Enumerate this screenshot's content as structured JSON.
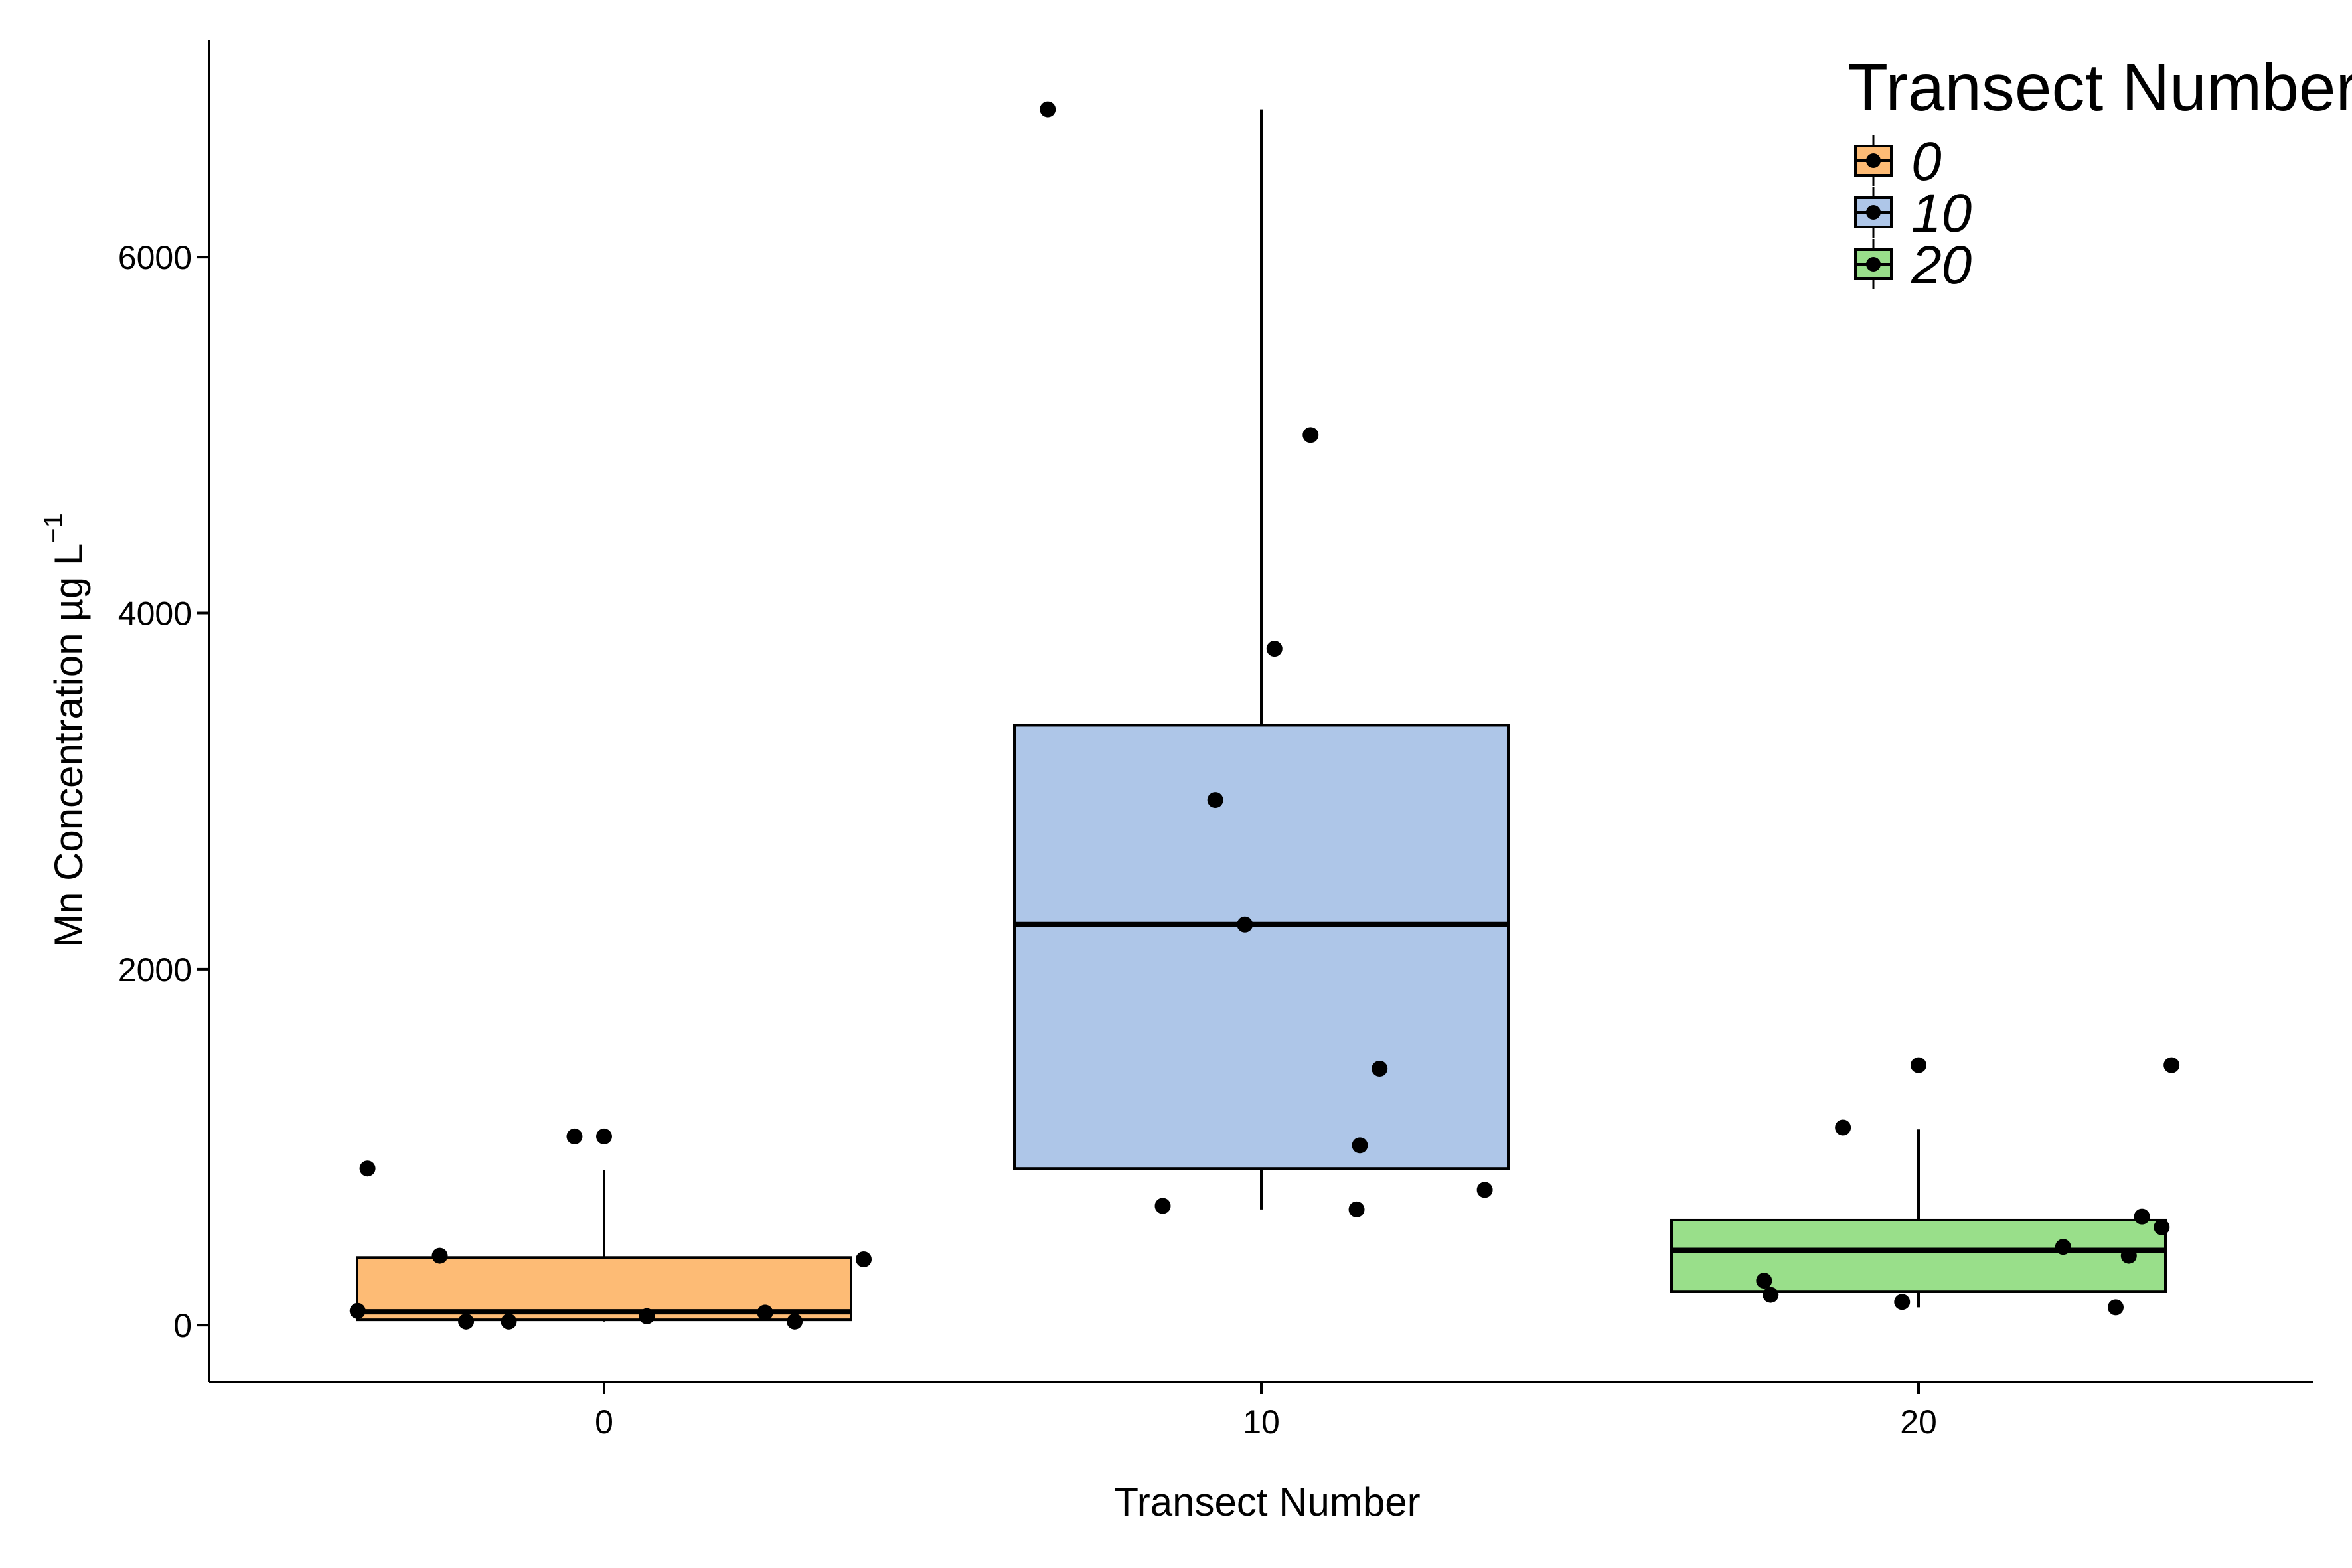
{
  "chart_data": {
    "type": "box",
    "xlabel": "Transect Number",
    "ylabel": "Mn Concentration µg L",
    "ylabel_superscript": "−1",
    "ylim": [
      -320,
      7220
    ],
    "yticks": [
      0,
      2000,
      4000,
      6000
    ],
    "grid": false,
    "legend": {
      "title": "Transect Number",
      "placement": "top-right",
      "entries": [
        "0",
        "10",
        "20"
      ]
    },
    "categories": [
      "0",
      "10",
      "20"
    ],
    "series": [
      {
        "name": "0",
        "color": "#fdbb75",
        "box": {
          "min": 20,
          "q1": 30,
          "median": 75,
          "q3": 380,
          "max": 870
        },
        "points": [
          {
            "x_offset": -0.375,
            "y": 80
          },
          {
            "x_offset": -0.36,
            "y": 880
          },
          {
            "x_offset": -0.25,
            "y": 390
          },
          {
            "x_offset": -0.21,
            "y": 20
          },
          {
            "x_offset": -0.145,
            "y": 20
          },
          {
            "x_offset": -0.045,
            "y": 1060
          },
          {
            "x_offset": 0.0,
            "y": 1060
          },
          {
            "x_offset": 0.065,
            "y": 50
          },
          {
            "x_offset": 0.245,
            "y": 70
          },
          {
            "x_offset": 0.29,
            "y": 20
          },
          {
            "x_offset": 0.395,
            "y": 370
          }
        ]
      },
      {
        "name": "10",
        "color": "#aec6e8",
        "box": {
          "min": 650,
          "q1": 880,
          "median": 2250,
          "q3": 3370,
          "max": 6830
        },
        "points": [
          {
            "x_offset": -0.325,
            "y": 6830
          },
          {
            "x_offset": -0.15,
            "y": 670
          },
          {
            "x_offset": -0.07,
            "y": 2950
          },
          {
            "x_offset": -0.025,
            "y": 2250
          },
          {
            "x_offset": 0.02,
            "y": 3800
          },
          {
            "x_offset": 0.075,
            "y": 5000
          },
          {
            "x_offset": 0.145,
            "y": 650
          },
          {
            "x_offset": 0.15,
            "y": 1010
          },
          {
            "x_offset": 0.18,
            "y": 1440
          },
          {
            "x_offset": 0.34,
            "y": 760
          }
        ]
      },
      {
        "name": "20",
        "color": "#99df8a",
        "box": {
          "min": 100,
          "q1": 190,
          "median": 420,
          "q3": 590,
          "max": 1100
        },
        "points": [
          {
            "x_offset": -0.235,
            "y": 250
          },
          {
            "x_offset": -0.225,
            "y": 170
          },
          {
            "x_offset": -0.115,
            "y": 1110
          },
          {
            "x_offset": -0.025,
            "y": 130
          },
          {
            "x_offset": 0.0,
            "y": 1460
          },
          {
            "x_offset": 0.22,
            "y": 440
          },
          {
            "x_offset": 0.3,
            "y": 100
          },
          {
            "x_offset": 0.32,
            "y": 390
          },
          {
            "x_offset": 0.34,
            "y": 610
          },
          {
            "x_offset": 0.37,
            "y": 550
          },
          {
            "x_offset": 0.385,
            "y": 1460
          }
        ]
      }
    ]
  }
}
